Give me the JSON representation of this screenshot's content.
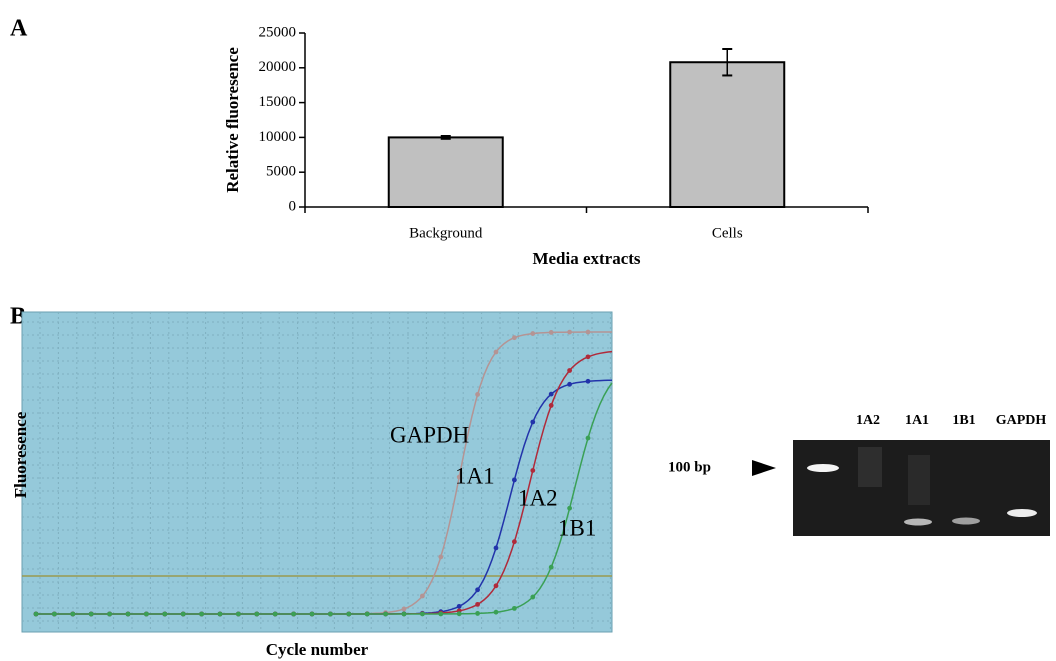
{
  "panel_labels": [
    "A",
    "B"
  ],
  "chart_data": [
    {
      "type": "bar",
      "ylabel": "Relative fluoresence",
      "xlabel": "Media extracts",
      "categories": [
        "Background",
        "Cells"
      ],
      "values": [
        10000,
        20800
      ],
      "errors": [
        200,
        1900
      ],
      "color": "#c0c0c0",
      "ylim": [
        0,
        25000
      ],
      "yticks": [
        0,
        5000,
        10000,
        15000,
        20000,
        25000
      ]
    }
  ],
  "qpcr": {
    "ylabel": "Fluoresence",
    "xlabel": "Cycle number",
    "curve_labels": [
      "GAPDH",
      "1A1",
      "1A2",
      "1B1"
    ]
  },
  "gel": {
    "marker": "100 bp",
    "lanes": [
      "1A2",
      "1A1",
      "1B1",
      "GAPDH"
    ]
  }
}
